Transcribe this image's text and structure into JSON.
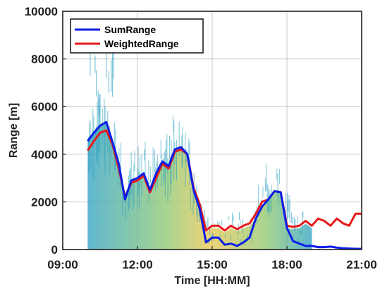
{
  "chart_data": {
    "type": "line",
    "title": "",
    "xlabel": "Time [HH:MM]",
    "ylabel": "Range [m]",
    "xlim_hours": [
      9,
      21
    ],
    "ylim": [
      0,
      10000
    ],
    "x_ticks": [
      "09:00",
      "12:00",
      "15:00",
      "18:00",
      "21:00"
    ],
    "y_ticks": [
      "0",
      "2000",
      "4000",
      "6000",
      "8000",
      "10000"
    ],
    "grid": true,
    "legend_position": "top-left",
    "series": [
      {
        "name": "SumRange",
        "color": "#0a1ee6",
        "x_hours": [
          10.0,
          10.25,
          10.5,
          10.75,
          11.0,
          11.25,
          11.5,
          11.75,
          12.0,
          12.25,
          12.5,
          12.75,
          13.0,
          13.25,
          13.5,
          13.75,
          14.0,
          14.25,
          14.5,
          14.75,
          15.0,
          15.25,
          15.5,
          15.75,
          16.0,
          16.25,
          16.5,
          16.75,
          17.0,
          17.25,
          17.5,
          17.75,
          18.0,
          18.25,
          18.5,
          18.75,
          19.0,
          19.25,
          19.5,
          19.75,
          20.0,
          20.25,
          20.5,
          20.75,
          21.0
        ],
        "values": [
          4550,
          4900,
          5200,
          5350,
          4500,
          3600,
          2100,
          2900,
          3000,
          3200,
          2500,
          3200,
          3700,
          3500,
          4200,
          4300,
          4000,
          2500,
          1700,
          300,
          500,
          500,
          200,
          250,
          150,
          300,
          500,
          1300,
          1800,
          2100,
          2450,
          2400,
          900,
          350,
          250,
          150,
          150,
          100,
          100,
          120,
          80,
          50,
          40,
          30,
          30
        ]
      },
      {
        "name": "WeightedRange",
        "color": "#e61a1a",
        "x_hours": [
          10.0,
          10.25,
          10.5,
          10.75,
          11.0,
          11.25,
          11.5,
          11.75,
          12.0,
          12.25,
          12.5,
          12.75,
          13.0,
          13.25,
          13.5,
          13.75,
          14.0,
          14.25,
          14.5,
          14.75,
          15.0,
          15.25,
          15.5,
          15.75,
          16.0,
          16.25,
          16.5,
          16.75,
          17.0,
          17.25,
          17.5,
          17.75,
          18.0,
          18.25,
          18.5,
          18.75,
          19.0,
          19.25,
          19.5,
          19.75,
          20.0,
          20.25,
          20.5,
          20.75,
          21.0
        ],
        "values": [
          4150,
          4550,
          4900,
          5000,
          4400,
          3400,
          2200,
          2800,
          2900,
          3100,
          2400,
          3000,
          3600,
          3400,
          4100,
          4200,
          4000,
          2600,
          1900,
          800,
          1000,
          1000,
          800,
          1000,
          850,
          1000,
          1100,
          1500,
          2000,
          2100,
          2450,
          2400,
          1000,
          950,
          1000,
          1200,
          1000,
          1300,
          1200,
          1000,
          1300,
          1100,
          1000,
          1500,
          1500
        ]
      }
    ]
  },
  "colors": {
    "fill_low": "#2a9fc0",
    "fill_mid": "#8ac66a",
    "fill_high": "#e8c44a",
    "grid": "#c8c8c8"
  }
}
